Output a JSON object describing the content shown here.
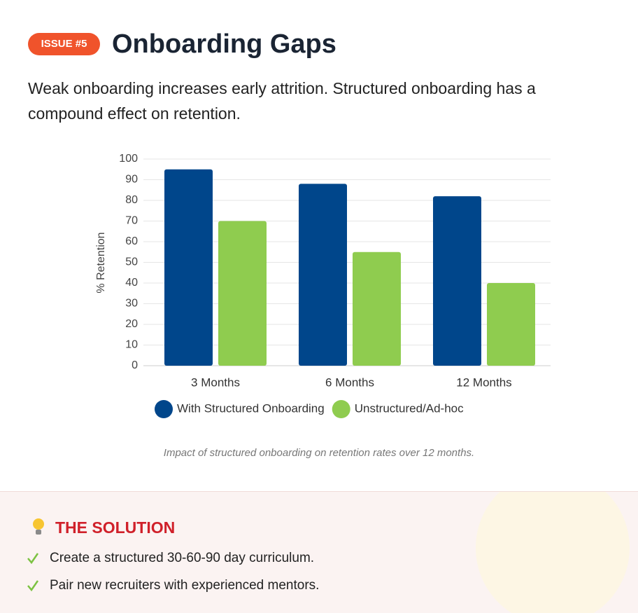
{
  "badge": "ISSUE #5",
  "title": "Onboarding Gaps",
  "description": "Weak onboarding increases early attrition. Structured onboarding has a compound effect on retention.",
  "chart_data": {
    "type": "bar",
    "categories": [
      "3 Months",
      "6 Months",
      "12 Months"
    ],
    "series": [
      {
        "name": "With Structured Onboarding",
        "color": "#00468b",
        "values": [
          95,
          88,
          82
        ]
      },
      {
        "name": "Unstructured/Ad-hoc",
        "color": "#8fcc4f",
        "values": [
          70,
          55,
          40
        ]
      }
    ],
    "y_label": "% Retention",
    "ylim": [
      0,
      100
    ],
    "yticks": [
      0,
      10,
      20,
      30,
      40,
      50,
      60,
      70,
      80,
      90,
      100
    ],
    "grid": true,
    "legend": "bottom"
  },
  "caption": "Impact of structured onboarding on retention rates over 12 months.",
  "solution": {
    "title": "THE SOLUTION",
    "items": [
      "Create a structured 30-60-90 day curriculum.",
      "Pair new recruiters with experienced mentors."
    ]
  }
}
